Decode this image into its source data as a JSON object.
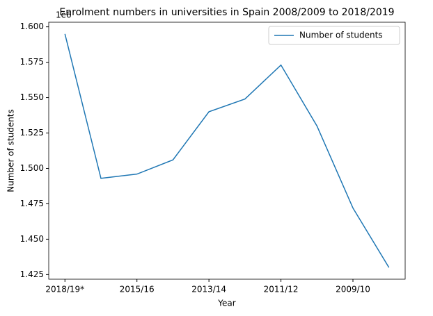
{
  "chart_data": {
    "type": "line",
    "title": "Enrolment numbers in universities in Spain 2008/2009 to 2018/2019",
    "xlabel": "Year",
    "ylabel": "Number of students",
    "y_offset_label": "1e6",
    "categories": [
      "2018/19*",
      null,
      "2015/16",
      null,
      "2013/14",
      null,
      "2011/12",
      null,
      "2009/10",
      null
    ],
    "series": [
      {
        "name": "Number of students",
        "color": "#1f77b4",
        "values": [
          1595000,
          1493000,
          1496000,
          1506000,
          1540000,
          1549000,
          1573000,
          1530000,
          1472000,
          1430000
        ]
      }
    ],
    "ylim": [
      1421750,
      1603250
    ],
    "yticks": [
      {
        "value": 1425000,
        "label": "1.425"
      },
      {
        "value": 1450000,
        "label": "1.450"
      },
      {
        "value": 1475000,
        "label": "1.475"
      },
      {
        "value": 1500000,
        "label": "1.500"
      },
      {
        "value": 1525000,
        "label": "1.525"
      },
      {
        "value": 1550000,
        "label": "1.550"
      },
      {
        "value": 1575000,
        "label": "1.575"
      },
      {
        "value": 1600000,
        "label": "1.600"
      }
    ],
    "legend": "upper right",
    "grid": false
  }
}
